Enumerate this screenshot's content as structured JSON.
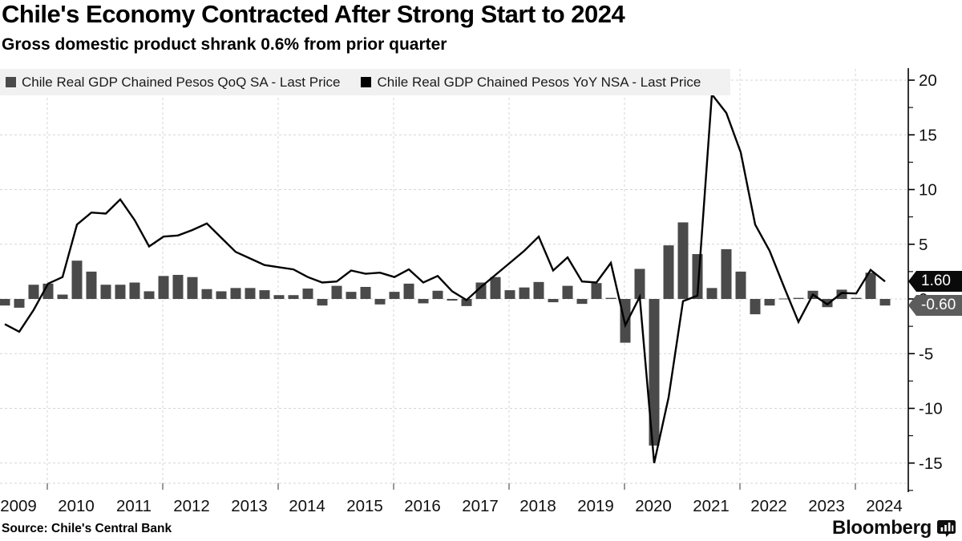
{
  "header": {
    "title": "Chile's Economy Contracted After Strong Start to 2024",
    "subtitle": "Gross domestic product shrank 0.6% from prior quarter"
  },
  "legend": {
    "items": [
      {
        "label": "Chile Real GDP Chained Pesos QoQ SA - Last Price",
        "color": "#4a4a4a"
      },
      {
        "label": "Chile Real GDP Chained Pesos YoY NSA - Last Price",
        "color": "#000000"
      }
    ]
  },
  "chart_data": {
    "type": "bar+line",
    "period_start": "2009Q1",
    "period_end": "2024Q2",
    "quarters_per_year": 4,
    "year_labels": [
      "2009",
      "2010",
      "2011",
      "2012",
      "2013",
      "2014",
      "2015",
      "2016",
      "2017",
      "2018",
      "2019",
      "2020",
      "2021",
      "2022",
      "2023",
      "2024"
    ],
    "y_ticks": [
      20,
      15,
      10,
      5,
      0,
      -5,
      -10,
      -15
    ],
    "ylim": [
      -17.5,
      21.5
    ],
    "grid": "dashed",
    "legend_position": "top-left",
    "series": [
      {
        "name": "Chile Real GDP Chained Pesos QoQ SA - Last Price",
        "type": "bar",
        "color": "#4a4a4a",
        "last_price": "-0.60",
        "values": [
          -0.6,
          -0.8,
          1.3,
          1.4,
          0.4,
          3.5,
          2.5,
          1.3,
          1.3,
          1.5,
          0.7,
          2.1,
          2.2,
          2.0,
          0.9,
          0.7,
          1.0,
          1.0,
          0.8,
          0.35,
          0.35,
          0.95,
          -0.6,
          1.2,
          0.65,
          1.1,
          -0.5,
          0.65,
          1.4,
          -0.4,
          0.75,
          -0.15,
          -0.65,
          1.5,
          2.0,
          0.8,
          1.05,
          1.55,
          -0.3,
          1.2,
          -0.45,
          1.45,
          0.1,
          -4.0,
          2.75,
          -13.4,
          4.9,
          7.0,
          4.1,
          1.0,
          4.55,
          2.5,
          -1.4,
          -0.6,
          0.0,
          0.1,
          0.75,
          -0.75,
          0.85,
          0.1,
          2.4,
          -0.6
        ]
      },
      {
        "name": "Chile Real GDP Chained Pesos YoY NSA - Last Price",
        "type": "line",
        "color": "#000000",
        "last_price": "1.60",
        "values": [
          -2.3,
          -3.0,
          -1.0,
          1.4,
          2.0,
          6.8,
          7.9,
          7.8,
          9.1,
          7.2,
          4.8,
          5.7,
          5.8,
          6.3,
          6.9,
          5.6,
          4.3,
          3.7,
          3.1,
          2.9,
          2.7,
          2.0,
          1.5,
          1.6,
          2.6,
          2.3,
          2.4,
          2.0,
          2.7,
          1.5,
          2.1,
          0.7,
          -0.1,
          1.1,
          2.2,
          3.3,
          4.4,
          5.7,
          2.6,
          3.8,
          1.6,
          1.5,
          3.3,
          -2.4,
          0.2,
          -15.0,
          -9.0,
          -0.2,
          0.3,
          18.7,
          17.0,
          13.4,
          6.8,
          4.4,
          1.1,
          -2.1,
          0.4,
          -0.5,
          0.55,
          0.5,
          2.65,
          1.6
        ]
      }
    ],
    "last_labels": [
      {
        "text": "1.60",
        "bg": "#0a0a0a"
      },
      {
        "text": "-0.60",
        "bg": "#5c5c5c"
      }
    ]
  },
  "footer": {
    "source": "Source: Chile's Central Bank",
    "brand": "Bloomberg"
  }
}
